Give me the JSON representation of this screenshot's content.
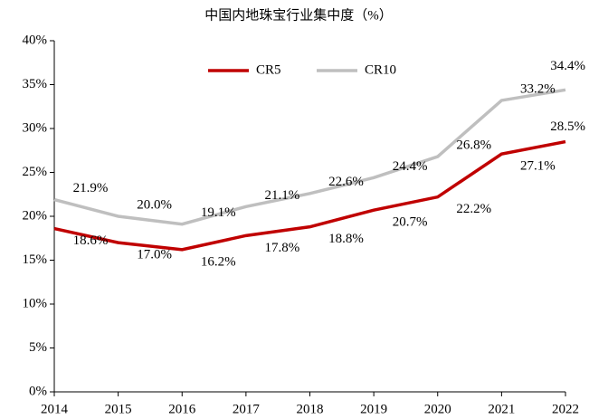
{
  "chart_data": {
    "type": "line",
    "title": "中国内地珠宝行业集中度（%）",
    "categories": [
      "2014",
      "2015",
      "2016",
      "2017",
      "2018",
      "2019",
      "2020",
      "2021",
      "2022"
    ],
    "series": [
      {
        "name": "CR5",
        "color": "#c00000",
        "values": [
          18.6,
          17.0,
          16.2,
          17.8,
          18.8,
          20.7,
          22.2,
          27.1,
          28.5
        ],
        "value_labels": [
          "18.6%",
          "17.0%",
          "16.2%",
          "17.8%",
          "18.8%",
          "20.7%",
          "22.2%",
          "27.1%",
          "28.5%"
        ]
      },
      {
        "name": "CR10",
        "color": "#bfbfbf",
        "values": [
          21.9,
          20.0,
          19.1,
          21.1,
          22.6,
          24.4,
          26.8,
          33.2,
          34.4
        ],
        "value_labels": [
          "21.9%",
          "20.0%",
          "19.1%",
          "21.1%",
          "22.6%",
          "24.4%",
          "26.8%",
          "33.2%",
          "34.4%"
        ]
      }
    ],
    "ylim": [
      0,
      40
    ],
    "yticks": [
      {
        "value": 0,
        "label": "0%"
      },
      {
        "value": 5,
        "label": "5%"
      },
      {
        "value": 10,
        "label": "10%"
      },
      {
        "value": 15,
        "label": "15%"
      },
      {
        "value": 20,
        "label": "20%"
      },
      {
        "value": 25,
        "label": "25%"
      },
      {
        "value": 30,
        "label": "30%"
      },
      {
        "value": 35,
        "label": "35%"
      },
      {
        "value": 40,
        "label": "40%"
      }
    ],
    "legend": "top"
  }
}
